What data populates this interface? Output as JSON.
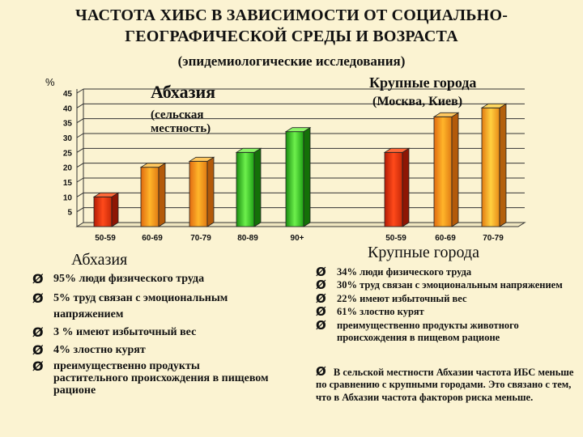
{
  "title_line1": "ЧАСТОТА ХИБС В ЗАВИСИМОСТИ ОТ СОЦИАЛЬНО-",
  "title_line2": "ГЕОГРАФИЧЕСКОЙ СРЕДЫ И ВОЗРАСТА",
  "subtitle": "(эпидемиологические исследования)",
  "chart_data": {
    "type": "bar",
    "ylabel": "%",
    "ylim": [
      0,
      45
    ],
    "yticks": [
      "5",
      "10",
      "15",
      "20",
      "25",
      "30",
      "35",
      "40",
      "45"
    ],
    "grid": true,
    "groups": [
      {
        "label": "Абхазия",
        "sublabel": "(сельская местность)",
        "categories": [
          "50-59",
          "60-69",
          "70-79",
          "80-89",
          "90+"
        ],
        "values": [
          10,
          20,
          22,
          25,
          32
        ]
      },
      {
        "label": "Крупные города",
        "sublabel": "(Москва, Киев)",
        "categories": [
          "50-59",
          "60-69",
          "70-79"
        ],
        "values": [
          25,
          37,
          40
        ]
      }
    ],
    "colors": {
      "low": "#d82a08",
      "mid": "#f5a91a",
      "high": "#29b816"
    }
  },
  "left_block": {
    "heading": "Абхазия",
    "bullet_icon": "arrow-bullet-icon",
    "items": [
      "95% люди физического труда",
      "5% труд связан с эмоциональным напряжением",
      "3 % имеют избыточный вес",
      "4% злостно курят",
      "преимущественно продукты растительного происхождения в пищевом рационе"
    ]
  },
  "right_block": {
    "heading": "Крупные города",
    "items": [
      "34% люди физического труда",
      "30% труд связан с эмоциональным напряжением",
      "22% имеют избыточный вес",
      "61% злостно курят",
      "преимущественно продукты животного происхождения в пищевом рационе"
    ],
    "conclusion_bullet": "В сельской местности Абхазии частота",
    "conclusion_rest": "ИБС меньше по сравнению с крупными городами. Это связано с тем, что в Абхазии частота факторов риска меньше."
  }
}
